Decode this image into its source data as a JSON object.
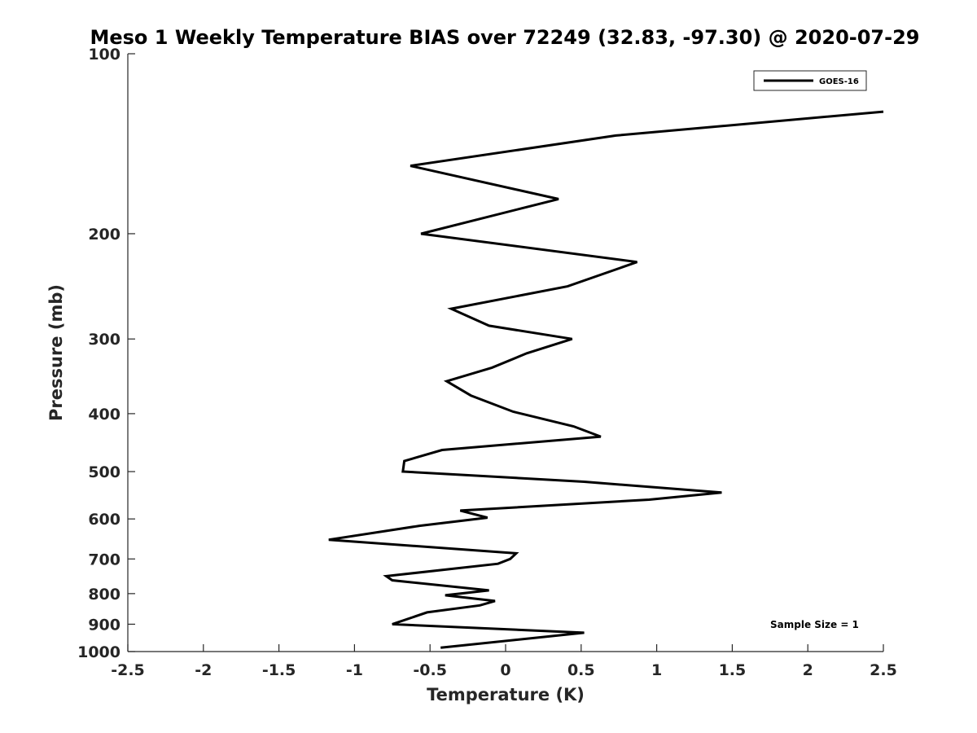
{
  "chart_data": {
    "type": "line",
    "title": "Meso 1 Weekly Temperature BIAS over 72249 (32.83, -97.30) @ 2020-07-29",
    "xlabel": "Temperature (K)",
    "ylabel": "Pressure (mb)",
    "xlim": [
      -2.5,
      2.5
    ],
    "ylim": [
      100,
      1000
    ],
    "yscale": "log",
    "y_reversed": true,
    "grid": false,
    "legend": "top-right",
    "x_ticks": [
      "-2.5",
      "-2",
      "-1.5",
      "-1",
      "-0.5",
      "0",
      "0.5",
      "1",
      "1.5",
      "2",
      "2.5"
    ],
    "y_ticks": [
      "100",
      "200",
      "300",
      "400",
      "500",
      "600",
      "700",
      "800",
      "900",
      "1000"
    ],
    "annotation": "Sample Size = 1",
    "series": [
      {
        "name": "GOES-16",
        "color": "#000000",
        "points": [
          [
            2.5,
            125
          ],
          [
            0.73,
            137
          ],
          [
            -0.63,
            154
          ],
          [
            0.35,
            175
          ],
          [
            -0.56,
            200
          ],
          [
            0.87,
            223
          ],
          [
            0.41,
            245
          ],
          [
            -0.36,
            267
          ],
          [
            -0.11,
            285
          ],
          [
            0.44,
            300
          ],
          [
            0.14,
            317
          ],
          [
            -0.09,
            335
          ],
          [
            -0.39,
            353
          ],
          [
            -0.23,
            373
          ],
          [
            0.05,
            397
          ],
          [
            0.45,
            420
          ],
          [
            0.63,
            437
          ],
          [
            -0.42,
            460
          ],
          [
            -0.67,
            480
          ],
          [
            -0.68,
            500
          ],
          [
            0.52,
            520
          ],
          [
            1.43,
            542
          ],
          [
            0.95,
            557
          ],
          [
            -0.3,
            581
          ],
          [
            -0.12,
            597
          ],
          [
            -0.57,
            616
          ],
          [
            -1.17,
            650
          ],
          [
            0.07,
            685
          ],
          [
            0.03,
            700
          ],
          [
            -0.05,
            713
          ],
          [
            -0.79,
            748
          ],
          [
            -0.75,
            760
          ],
          [
            -0.11,
            790
          ],
          [
            -0.4,
            805
          ],
          [
            -0.07,
            823
          ],
          [
            -0.17,
            837
          ],
          [
            -0.52,
            860
          ],
          [
            -0.75,
            900
          ],
          [
            0.52,
            930
          ],
          [
            -0.43,
            985
          ]
        ]
      }
    ]
  }
}
